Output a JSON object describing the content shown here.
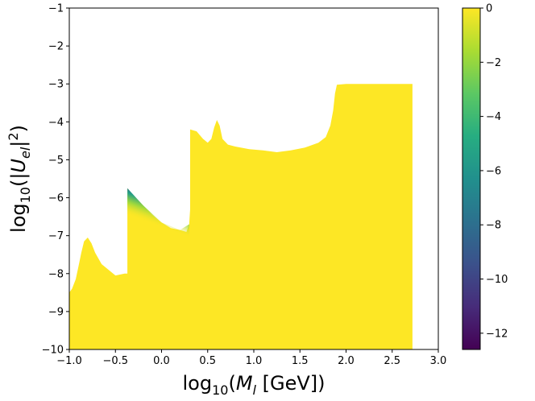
{
  "chart_data": {
    "type": "heatmap",
    "xlabel": "log10(Ml [GeV])",
    "ylabel": "log10(|Uel|2)",
    "xlabel_parts": {
      "base": "log",
      "sub": "10",
      "open": "(",
      "var": "M",
      "var_sub": "l",
      "unit": " [GeV])"
    },
    "ylabel_parts": {
      "base": "log",
      "sub": "10",
      "open": "(|",
      "var": "U",
      "var_sub": "el",
      "close": "|",
      "sup": "2",
      "end": ")"
    },
    "xlim": [
      -1.0,
      3.0
    ],
    "ylim": [
      -10,
      -1
    ],
    "x_ticks": [
      -1.0,
      -0.5,
      0.0,
      0.5,
      1.0,
      1.5,
      2.0,
      2.5,
      3.0
    ],
    "x_tick_labels": [
      "−1.0",
      "−0.5",
      "0.0",
      "0.5",
      "1.0",
      "1.5",
      "2.0",
      "2.5",
      "3.0"
    ],
    "y_ticks": [
      -10,
      -9,
      -8,
      -7,
      -6,
      -5,
      -4,
      -3,
      -2,
      -1
    ],
    "y_tick_labels": [
      "−10",
      "−9",
      "−8",
      "−7",
      "−6",
      "−5",
      "−4",
      "−3",
      "−2",
      "−1"
    ],
    "colorbar": {
      "range": [
        -12.6,
        0
      ],
      "ticks": [
        0,
        -2,
        -4,
        -6,
        -8,
        -10,
        -12
      ],
      "tick_labels": [
        "0",
        "−2",
        "−4",
        "−6",
        "−8",
        "−10",
        "−12"
      ],
      "colormap": "viridis",
      "colors": [
        "#440154",
        "#472c7a",
        "#3b518b",
        "#2c718e",
        "#21908d",
        "#27ad81",
        "#5cc863",
        "#aadc32",
        "#fde725"
      ]
    },
    "region_upper_boundary": [
      [
        -1.0,
        -8.5
      ],
      [
        -0.97,
        -8.4
      ],
      [
        -0.93,
        -8.15
      ],
      [
        -0.9,
        -7.8
      ],
      [
        -0.87,
        -7.45
      ],
      [
        -0.84,
        -7.15
      ],
      [
        -0.8,
        -7.05
      ],
      [
        -0.76,
        -7.2
      ],
      [
        -0.72,
        -7.45
      ],
      [
        -0.65,
        -7.75
      ],
      [
        -0.55,
        -7.95
      ],
      [
        -0.5,
        -8.05
      ],
      [
        -0.4,
        -8.0
      ],
      [
        -0.37,
        -8.0
      ],
      [
        -0.37,
        -5.75
      ],
      [
        -0.3,
        -5.95
      ],
      [
        -0.2,
        -6.2
      ],
      [
        -0.1,
        -6.45
      ],
      [
        0.0,
        -6.65
      ],
      [
        0.1,
        -6.8
      ],
      [
        0.2,
        -6.85
      ],
      [
        0.27,
        -6.9
      ],
      [
        0.3,
        -6.7
      ],
      [
        0.31,
        -6.3
      ],
      [
        0.31,
        -4.2
      ],
      [
        0.38,
        -4.25
      ],
      [
        0.45,
        -4.45
      ],
      [
        0.5,
        -4.55
      ],
      [
        0.54,
        -4.45
      ],
      [
        0.57,
        -4.15
      ],
      [
        0.6,
        -3.95
      ],
      [
        0.63,
        -4.1
      ],
      [
        0.66,
        -4.45
      ],
      [
        0.72,
        -4.6
      ],
      [
        0.8,
        -4.65
      ],
      [
        0.95,
        -4.72
      ],
      [
        1.1,
        -4.75
      ],
      [
        1.25,
        -4.8
      ],
      [
        1.4,
        -4.75
      ],
      [
        1.55,
        -4.68
      ],
      [
        1.7,
        -4.55
      ],
      [
        1.78,
        -4.4
      ],
      [
        1.83,
        -4.1
      ],
      [
        1.86,
        -3.7
      ],
      [
        1.88,
        -3.25
      ],
      [
        1.9,
        -3.02
      ],
      [
        2.0,
        -3.0
      ],
      [
        2.3,
        -3.0
      ],
      [
        2.55,
        -3.0
      ],
      [
        2.72,
        -3.0
      ],
      [
        2.72,
        -10.0
      ]
    ],
    "gradient_band": {
      "edge": [
        [
          -0.37,
          -5.75
        ],
        [
          -0.2,
          -6.2
        ],
        [
          0.0,
          -6.65
        ],
        [
          0.2,
          -6.85
        ],
        [
          0.3,
          -6.7
        ]
      ],
      "value_at_edge": -8.5,
      "depth": 0.7
    },
    "fill_value": 0
  }
}
